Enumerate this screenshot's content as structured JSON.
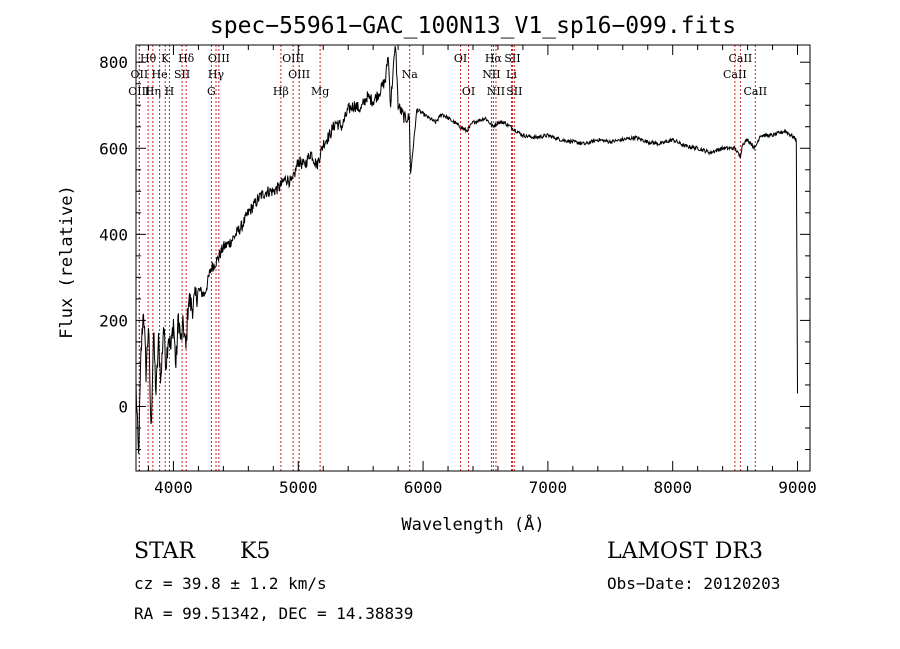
{
  "chart_data": {
    "type": "line",
    "title": "spec−55961−GAC_100N13_V1_sp16−099.fits",
    "xlabel": "Wavelength (Å)",
    "ylabel": "Flux (relative)",
    "xlim": [
      3700,
      9100
    ],
    "ylim": [
      -150,
      840
    ],
    "xticks": [
      4000,
      5000,
      6000,
      7000,
      8000,
      9000
    ],
    "yticks": [
      0,
      200,
      400,
      600,
      800
    ],
    "grid": false,
    "series": [
      {
        "name": "flux",
        "x": [
          3700,
          3720,
          3740,
          3760,
          3780,
          3800,
          3820,
          3840,
          3860,
          3880,
          3900,
          3920,
          3940,
          3960,
          3980,
          4000,
          4020,
          4040,
          4060,
          4080,
          4100,
          4120,
          4150,
          4200,
          4250,
          4300,
          4350,
          4400,
          4450,
          4500,
          4550,
          4600,
          4650,
          4700,
          4750,
          4800,
          4850,
          4900,
          4950,
          5000,
          5050,
          5100,
          5150,
          5200,
          5250,
          5300,
          5350,
          5400,
          5450,
          5500,
          5550,
          5600,
          5650,
          5700,
          5720,
          5740,
          5760,
          5780,
          5800,
          5850,
          5890,
          5900,
          5950,
          6000,
          6050,
          6100,
          6150,
          6200,
          6300,
          6350,
          6400,
          6500,
          6560,
          6600,
          6650,
          6700,
          6750,
          6800,
          6900,
          7000,
          7100,
          7200,
          7300,
          7400,
          7500,
          7600,
          7700,
          7800,
          7900,
          8000,
          8100,
          8200,
          8300,
          8400,
          8500,
          8540,
          8560,
          8600,
          8660,
          8700,
          8800,
          8900,
          8950,
          8990,
          9000
        ],
        "y": [
          50,
          -120,
          120,
          230,
          80,
          190,
          -60,
          170,
          30,
          150,
          60,
          190,
          100,
          170,
          130,
          200,
          90,
          210,
          150,
          190,
          130,
          250,
          230,
          270,
          260,
          320,
          340,
          370,
          380,
          400,
          420,
          450,
          470,
          490,
          500,
          500,
          510,
          530,
          520,
          570,
          560,
          590,
          560,
          610,
          630,
          660,
          650,
          690,
          700,
          690,
          720,
          710,
          730,
          760,
          820,
          700,
          780,
          840,
          700,
          670,
          670,
          540,
          690,
          680,
          670,
          660,
          680,
          670,
          650,
          640,
          660,
          670,
          650,
          660,
          660,
          650,
          640,
          630,
          625,
          630,
          620,
          615,
          610,
          620,
          615,
          620,
          625,
          615,
          610,
          620,
          605,
          600,
          590,
          600,
          600,
          580,
          610,
          620,
          600,
          630,
          630,
          640,
          630,
          620,
          30
        ]
      }
    ],
    "emission_lines": [
      {
        "name": "Hθ",
        "x": 3797,
        "row": 1
      },
      {
        "name": "OII",
        "x": 3727,
        "row": 2
      },
      {
        "name": "OIII",
        "x": 3726,
        "row": 3
      },
      {
        "name": "He",
        "x": 3889,
        "row": 2
      },
      {
        "name": "K",
        "x": 3934,
        "row": 1
      },
      {
        "name": "Hη",
        "x": 3835,
        "row": 3
      },
      {
        "name": "H",
        "x": 3968,
        "row": 3
      },
      {
        "name": "SII",
        "x": 4069,
        "row": 2
      },
      {
        "name": "Hδ",
        "x": 4102,
        "row": 1
      },
      {
        "name": "OIII",
        "x": 4364,
        "row": 1
      },
      {
        "name": "Hγ",
        "x": 4341,
        "row": 2
      },
      {
        "name": "G",
        "x": 4304,
        "row": 3
      },
      {
        "name": "OIII",
        "x": 4959,
        "row": 1
      },
      {
        "name": "OIII",
        "x": 5007,
        "row": 2
      },
      {
        "name": "Hβ",
        "x": 4861,
        "row": 3
      },
      {
        "name": "Mg",
        "x": 5175,
        "row": 3
      },
      {
        "name": "Na",
        "x": 5893,
        "row": 2
      },
      {
        "name": "OI",
        "x": 6300,
        "row": 1
      },
      {
        "name": "OI",
        "x": 6364,
        "row": 3
      },
      {
        "name": "Hα",
        "x": 6563,
        "row": 1
      },
      {
        "name": "SII",
        "x": 6716,
        "row": 1
      },
      {
        "name": "NII",
        "x": 6548,
        "row": 2
      },
      {
        "name": "Li",
        "x": 6708,
        "row": 2
      },
      {
        "name": "NII",
        "x": 6584,
        "row": 3
      },
      {
        "name": "SII",
        "x": 6731,
        "row": 3
      },
      {
        "name": "CaII",
        "x": 8542,
        "row": 1
      },
      {
        "name": "CaII",
        "x": 8498,
        "row": 2
      },
      {
        "name": "CaII",
        "x": 8662,
        "row": 3
      }
    ]
  },
  "info": {
    "class": "STAR",
    "subclass": "K5",
    "survey": "LAMOST DR3",
    "cz": "cz = 39.8 ± 1.2 km/s",
    "obs_date": "Obs−Date: 20120203",
    "coords": "RA =  99.51342, DEC =  14.38839"
  }
}
